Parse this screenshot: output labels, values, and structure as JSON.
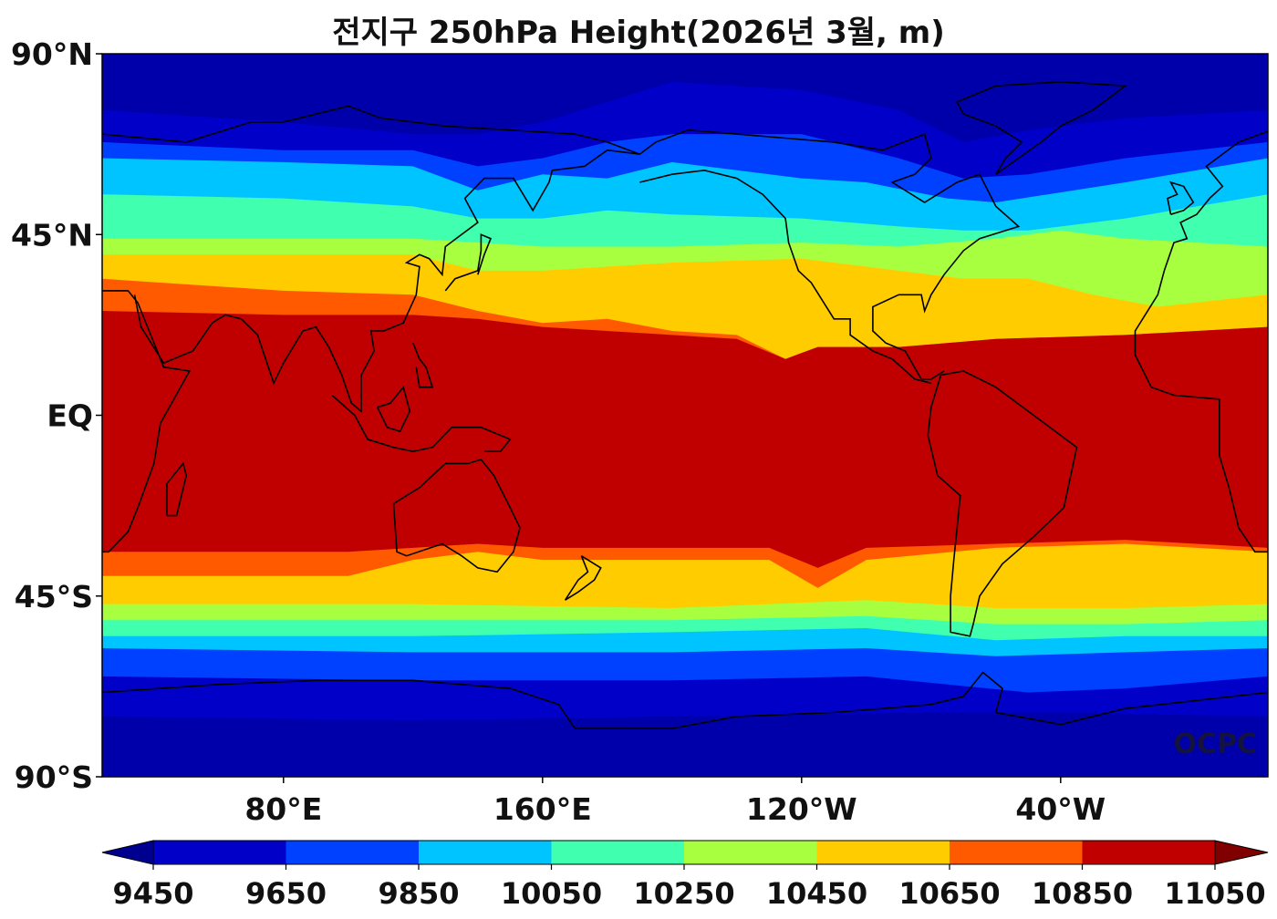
{
  "title": "전지구 250hPa Height(2026년 3월, m)",
  "watermark": "OCPC",
  "map": {
    "projection": "equirectangular",
    "lon_range_east": [
      24,
      384
    ],
    "lat_range": [
      -90,
      90
    ],
    "lat_ticks": [
      {
        "lat": 90,
        "label": "90°N"
      },
      {
        "lat": 45,
        "label": "45°N"
      },
      {
        "lat": 0,
        "label": "EQ"
      },
      {
        "lat": -45,
        "label": "45°S"
      },
      {
        "lat": -90,
        "label": "90°S"
      }
    ],
    "lon_ticks": [
      {
        "lon": 80,
        "label": "80°E"
      },
      {
        "lon": 160,
        "label": "160°E"
      },
      {
        "lon": 240,
        "label": "120°W"
      },
      {
        "lon": 320,
        "label": "40°W"
      }
    ],
    "bands": [
      {
        "value": 9650,
        "color": "#0000c8",
        "north": [
          [
            24,
            76
          ],
          [
            80,
            73
          ],
          [
            120,
            70
          ],
          [
            140,
            70
          ],
          [
            160,
            73
          ],
          [
            200,
            83
          ],
          [
            240,
            81
          ],
          [
            270,
            76
          ],
          [
            290,
            68
          ],
          [
            310,
            71
          ],
          [
            340,
            74
          ],
          [
            384,
            76
          ]
        ],
        "south": [
          [
            24,
            -75
          ],
          [
            120,
            -76
          ],
          [
            200,
            -75
          ],
          [
            280,
            -74
          ],
          [
            320,
            -74
          ],
          [
            384,
            -75
          ]
        ]
      },
      {
        "value": 9850,
        "color": "#0040ff",
        "north": [
          [
            24,
            68
          ],
          [
            80,
            66
          ],
          [
            120,
            66
          ],
          [
            140,
            62
          ],
          [
            160,
            64
          ],
          [
            180,
            68
          ],
          [
            200,
            70
          ],
          [
            240,
            70
          ],
          [
            270,
            64
          ],
          [
            290,
            59
          ],
          [
            310,
            60
          ],
          [
            340,
            64
          ],
          [
            384,
            68
          ]
        ],
        "south": [
          [
            24,
            -65
          ],
          [
            120,
            -66
          ],
          [
            200,
            -66
          ],
          [
            260,
            -65
          ],
          [
            310,
            -69
          ],
          [
            340,
            -68
          ],
          [
            384,
            -65
          ]
        ]
      },
      {
        "value": 10050,
        "color": "#00c4ff",
        "north": [
          [
            24,
            64
          ],
          [
            80,
            63
          ],
          [
            120,
            62
          ],
          [
            140,
            56
          ],
          [
            160,
            60
          ],
          [
            180,
            59
          ],
          [
            200,
            63
          ],
          [
            240,
            59
          ],
          [
            260,
            58
          ],
          [
            285,
            54
          ],
          [
            300,
            53
          ],
          [
            340,
            58
          ],
          [
            384,
            64
          ]
        ],
        "south": [
          [
            24,
            -58
          ],
          [
            120,
            -59
          ],
          [
            200,
            -59
          ],
          [
            260,
            -58
          ],
          [
            300,
            -60
          ],
          [
            340,
            -59
          ],
          [
            384,
            -58
          ]
        ]
      },
      {
        "value": 10250,
        "color": "#40ffae",
        "north": [
          [
            24,
            55
          ],
          [
            80,
            54
          ],
          [
            120,
            52
          ],
          [
            140,
            49
          ],
          [
            160,
            49
          ],
          [
            180,
            51
          ],
          [
            200,
            50
          ],
          [
            240,
            49
          ],
          [
            270,
            47
          ],
          [
            290,
            46
          ],
          [
            310,
            46
          ],
          [
            340,
            49
          ],
          [
            384,
            55
          ]
        ],
        "south": [
          [
            24,
            -55
          ],
          [
            120,
            -55
          ],
          [
            200,
            -54
          ],
          [
            260,
            -53
          ],
          [
            300,
            -56
          ],
          [
            340,
            -55
          ],
          [
            384,
            -55
          ]
        ]
      },
      {
        "value": 10450,
        "color": "#a8ff40",
        "north": [
          [
            24,
            44
          ],
          [
            80,
            44
          ],
          [
            120,
            44
          ],
          [
            140,
            43
          ],
          [
            160,
            42
          ],
          [
            180,
            42
          ],
          [
            200,
            42
          ],
          [
            240,
            43
          ],
          [
            270,
            42
          ],
          [
            300,
            44
          ],
          [
            320,
            46
          ],
          [
            340,
            44
          ],
          [
            384,
            42
          ]
        ],
        "south": [
          [
            24,
            -51
          ],
          [
            120,
            -51
          ],
          [
            200,
            -51
          ],
          [
            260,
            -50
          ],
          [
            300,
            -52
          ],
          [
            340,
            -52
          ],
          [
            384,
            -51
          ]
        ]
      },
      {
        "value": 10650,
        "color": "#ffcc00",
        "north": [
          [
            24,
            40
          ],
          [
            80,
            40
          ],
          [
            120,
            40
          ],
          [
            140,
            36
          ],
          [
            160,
            36
          ],
          [
            180,
            37
          ],
          [
            200,
            38
          ],
          [
            240,
            39
          ],
          [
            260,
            37
          ],
          [
            290,
            34
          ],
          [
            310,
            34
          ],
          [
            330,
            30
          ],
          [
            350,
            27
          ],
          [
            384,
            30
          ]
        ],
        "south": [
          [
            24,
            -47
          ],
          [
            120,
            -47
          ],
          [
            200,
            -48
          ],
          [
            260,
            -46
          ],
          [
            300,
            -48
          ],
          [
            340,
            -48
          ],
          [
            384,
            -47
          ]
        ]
      },
      {
        "value": 10850,
        "color": "#ff5a00",
        "north": [
          [
            24,
            34
          ],
          [
            80,
            31
          ],
          [
            120,
            30
          ],
          [
            140,
            26
          ],
          [
            160,
            23
          ],
          [
            180,
            24
          ],
          [
            200,
            21
          ],
          [
            220,
            20
          ],
          [
            235,
            14
          ],
          [
            245,
            17
          ],
          [
            270,
            17
          ],
          [
            300,
            19
          ],
          [
            340,
            20
          ],
          [
            384,
            22
          ]
        ],
        "south": [
          [
            24,
            -40
          ],
          [
            100,
            -40
          ],
          [
            120,
            -36
          ],
          [
            140,
            -34
          ],
          [
            160,
            -36
          ],
          [
            200,
            -36
          ],
          [
            230,
            -36
          ],
          [
            245,
            -43
          ],
          [
            260,
            -36
          ],
          [
            300,
            -33
          ],
          [
            340,
            -32
          ],
          [
            384,
            -34
          ]
        ]
      },
      {
        "value": 11050,
        "color": "#c00000",
        "north": [
          [
            24,
            26
          ],
          [
            80,
            25
          ],
          [
            120,
            25
          ],
          [
            140,
            24
          ],
          [
            160,
            22
          ],
          [
            180,
            21
          ],
          [
            200,
            20
          ],
          [
            220,
            19
          ],
          [
            235,
            14
          ],
          [
            245,
            17
          ],
          [
            270,
            17
          ],
          [
            300,
            19
          ],
          [
            340,
            20
          ],
          [
            384,
            22
          ]
        ],
        "south": [
          [
            24,
            -34
          ],
          [
            100,
            -34
          ],
          [
            120,
            -33
          ],
          [
            140,
            -32
          ],
          [
            160,
            -33
          ],
          [
            200,
            -33
          ],
          [
            230,
            -33
          ],
          [
            245,
            -38
          ],
          [
            260,
            -33
          ],
          [
            300,
            -32
          ],
          [
            340,
            -31
          ],
          [
            384,
            -33
          ]
        ]
      }
    ]
  },
  "colorbar": {
    "levels": [
      9450,
      9650,
      9850,
      10050,
      10250,
      10450,
      10650,
      10850,
      11050
    ],
    "colors": [
      "#0000c8",
      "#0040ff",
      "#00c4ff",
      "#40ffae",
      "#a8ff40",
      "#ffcc00",
      "#ff5a00",
      "#c00000"
    ],
    "under_color": "#000090",
    "over_color": "#800000",
    "labels": [
      "9450",
      "9650",
      "9850",
      "10050",
      "10250",
      "10450",
      "10650",
      "10850",
      "11050"
    ]
  },
  "colors": {
    "background_band": "#0000aa",
    "coastline": "#000000"
  }
}
